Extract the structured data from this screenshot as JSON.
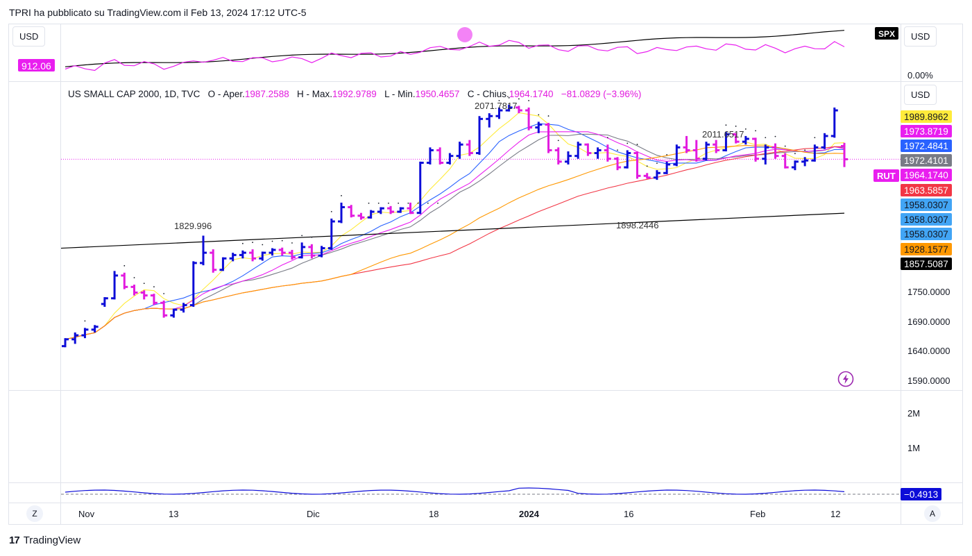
{
  "header": {
    "publish_text": "TPRI ha pubblicato su TradingView.com il Feb 13, 2024 17:12 UTC-5"
  },
  "top_pane": {
    "usd_left": "USD",
    "usd_right": "USD",
    "value_tag": "912.06",
    "symbol_tag": "SPX",
    "pct_label": "0.00%"
  },
  "main_pane": {
    "usd_right": "USD",
    "legend": {
      "name": "US SMALL CAP 2000, 1D, TVC",
      "open_label": "O - Aper.",
      "open": "1987.2588",
      "high_label": "H - Max.",
      "high": "1992.9789",
      "low_label": "L - Min.",
      "low": "1950.4657",
      "close_label": "C - Chius.",
      "close": "1964.1740",
      "change": "−81.0829 (−3.96%)"
    },
    "symbol_tag": "RUT",
    "annotations": {
      "peak": "2071.7817",
      "high2": "2011.6517",
      "low1": "1829.996",
      "low2": "1898.2446"
    },
    "price_labels": [
      {
        "text": "1989.8962",
        "bg": "#ffeb3b",
        "fg": "#131722"
      },
      {
        "text": "1973.8719",
        "bg": "#e91eef",
        "fg": "#ffffff"
      },
      {
        "text": "1972.4841",
        "bg": "#2962ff",
        "fg": "#ffffff"
      },
      {
        "text": "1972.4101",
        "bg": "#787b86",
        "fg": "#ffffff"
      },
      {
        "text": "1964.1740",
        "bg": "#e91eef",
        "fg": "#ffffff"
      },
      {
        "text": "1963.5857",
        "bg": "#f23645",
        "fg": "#ffffff"
      },
      {
        "text": "1958.0307",
        "bg": "#42a5f5",
        "fg": "#131722"
      },
      {
        "text": "1958.0307",
        "bg": "#42a5f5",
        "fg": "#131722"
      },
      {
        "text": "1958.0307",
        "bg": "#42a5f5",
        "fg": "#131722"
      },
      {
        "text": "1928.1577",
        "bg": "#ff9800",
        "fg": "#131722"
      },
      {
        "text": "1857.5087",
        "bg": "#000000",
        "fg": "#ffffff"
      }
    ],
    "axis_ticks": [
      "1750.0000",
      "1690.0000",
      "1640.0000",
      "1590.0000"
    ]
  },
  "volume_pane": {
    "ticks": [
      "2M",
      "1M"
    ]
  },
  "bottom_pane": {
    "value_tag": "−0.4913"
  },
  "time_axis": {
    "z_button": "Z",
    "a_button": "A",
    "labels": [
      "Nov",
      "13",
      "Dic",
      "18",
      "2024",
      "16",
      "Feb",
      "12"
    ]
  },
  "footer": {
    "logo_mark": "17",
    "brand": "TradingView"
  },
  "colors": {
    "up": "#0d0dd8",
    "down": "#e21bdf",
    "sma_yellow": "#ffeb3b",
    "sma_blue": "#2962ff",
    "sma_gray": "#787b86",
    "sma_magenta": "#e91eef",
    "sma_red": "#f23645",
    "sma_orange": "#ff9800",
    "sma_black": "#000000"
  },
  "chart_data": {
    "type": "ohlc",
    "title": "US SMALL CAP 2000, 1D, TVC",
    "x_range": [
      "2023-10-30",
      "2024-02-13"
    ],
    "ylim": [
      1560,
      2100
    ],
    "ohlc": [
      [
        1636,
        1650,
        1634,
        1648
      ],
      [
        1648,
        1660,
        1640,
        1655
      ],
      [
        1655,
        1668,
        1650,
        1665
      ],
      [
        1665,
        1673,
        1660,
        1670
      ],
      [
        1710,
        1722,
        1705,
        1720
      ],
      [
        1720,
        1768,
        1718,
        1760
      ],
      [
        1760,
        1765,
        1736,
        1740
      ],
      [
        1740,
        1744,
        1725,
        1730
      ],
      [
        1730,
        1734,
        1718,
        1725
      ],
      [
        1725,
        1728,
        1708,
        1712
      ],
      [
        1712,
        1716,
        1686,
        1690
      ],
      [
        1690,
        1702,
        1686,
        1700
      ],
      [
        1700,
        1712,
        1695,
        1708
      ],
      [
        1708,
        1785,
        1705,
        1782
      ],
      [
        1782,
        1830,
        1778,
        1800
      ],
      [
        1800,
        1806,
        1765,
        1770
      ],
      [
        1770,
        1792,
        1768,
        1790
      ],
      [
        1790,
        1800,
        1785,
        1796
      ],
      [
        1796,
        1804,
        1790,
        1800
      ],
      [
        1800,
        1806,
        1785,
        1790
      ],
      [
        1790,
        1802,
        1786,
        1800
      ],
      [
        1800,
        1808,
        1795,
        1805
      ],
      [
        1805,
        1809,
        1795,
        1800
      ],
      [
        1800,
        1805,
        1788,
        1792
      ],
      [
        1792,
        1818,
        1790,
        1810
      ],
      [
        1810,
        1815,
        1790,
        1795
      ],
      [
        1795,
        1812,
        1792,
        1808
      ],
      [
        1808,
        1860,
        1805,
        1855
      ],
      [
        1855,
        1888,
        1852,
        1880
      ],
      [
        1880,
        1884,
        1862,
        1865
      ],
      [
        1865,
        1870,
        1858,
        1862
      ],
      [
        1862,
        1875,
        1860,
        1872
      ],
      [
        1872,
        1880,
        1868,
        1878
      ],
      [
        1878,
        1882,
        1868,
        1872
      ],
      [
        1872,
        1880,
        1870,
        1878
      ],
      [
        1878,
        1888,
        1868,
        1870
      ],
      [
        1870,
        1960,
        1868,
        1958
      ],
      [
        1958,
        1985,
        1955,
        1980
      ],
      [
        1980,
        1985,
        1955,
        1958
      ],
      [
        1958,
        1975,
        1955,
        1970
      ],
      [
        1970,
        1995,
        1965,
        1990
      ],
      [
        1990,
        1998,
        1970,
        1975
      ],
      [
        1975,
        2040,
        1972,
        2035
      ],
      [
        2035,
        2045,
        2020,
        2040
      ],
      [
        2040,
        2055,
        2035,
        2050
      ],
      [
        2050,
        2060,
        2048,
        2055
      ],
      [
        2055,
        2058,
        2045,
        2050
      ],
      [
        2050,
        2055,
        2015,
        2020
      ],
      [
        2020,
        2030,
        2010,
        2025
      ],
      [
        2025,
        2028,
        1975,
        1980
      ],
      [
        1980,
        1985,
        1955,
        1960
      ],
      [
        1960,
        1978,
        1955,
        1970
      ],
      [
        1970,
        1995,
        1965,
        1990
      ],
      [
        1990,
        1992,
        1970,
        1975
      ],
      [
        1975,
        1985,
        1965,
        1980
      ],
      [
        1980,
        1990,
        1960,
        1965
      ],
      [
        1965,
        1968,
        1945,
        1950
      ],
      [
        1950,
        1980,
        1948,
        1975
      ],
      [
        1975,
        1978,
        1930,
        1935
      ],
      [
        1935,
        1940,
        1930,
        1932
      ],
      [
        1932,
        1945,
        1928,
        1940
      ],
      [
        1940,
        1960,
        1938,
        1955
      ],
      [
        1955,
        1990,
        1952,
        1985
      ],
      [
        1985,
        2005,
        1975,
        1980
      ],
      [
        1980,
        1998,
        1960,
        1965
      ],
      [
        1965,
        1995,
        1962,
        1990
      ],
      [
        1990,
        1998,
        1975,
        1980
      ],
      [
        1980,
        2012,
        1978,
        2008
      ],
      [
        2008,
        2010,
        1992,
        1995
      ],
      [
        1995,
        2005,
        1990,
        2000
      ],
      [
        2000,
        2002,
        1960,
        1965
      ],
      [
        1965,
        1990,
        1955,
        1985
      ],
      [
        1985,
        1992,
        1965,
        1970
      ],
      [
        1970,
        1975,
        1948,
        1950
      ],
      [
        1950,
        1962,
        1945,
        1960
      ],
      [
        1960,
        1968,
        1952,
        1962
      ],
      [
        1962,
        1990,
        1960,
        1985
      ],
      [
        1985,
        2010,
        1982,
        2005
      ],
      [
        2005,
        2055,
        2002,
        2050
      ],
      [
        1987.2588,
        1992.9789,
        1950.4657,
        1964.174
      ]
    ],
    "sma": [
      {
        "name": "SMA yellow",
        "color": "#ffeb3b",
        "last": 1989.8962
      },
      {
        "name": "SMA magenta",
        "color": "#e91eef",
        "last": 1973.8719
      },
      {
        "name": "SMA blue",
        "color": "#2962ff",
        "last": 1972.4841
      },
      {
        "name": "SMA gray",
        "color": "#787b86",
        "last": 1972.4101
      },
      {
        "name": "SMA red",
        "color": "#f23645",
        "last": 1963.5857
      },
      {
        "name": "SMA orange",
        "color": "#ff9800",
        "last": 1928.1577
      },
      {
        "name": "SMA black",
        "color": "#000000",
        "last": 1857.5087
      }
    ]
  }
}
